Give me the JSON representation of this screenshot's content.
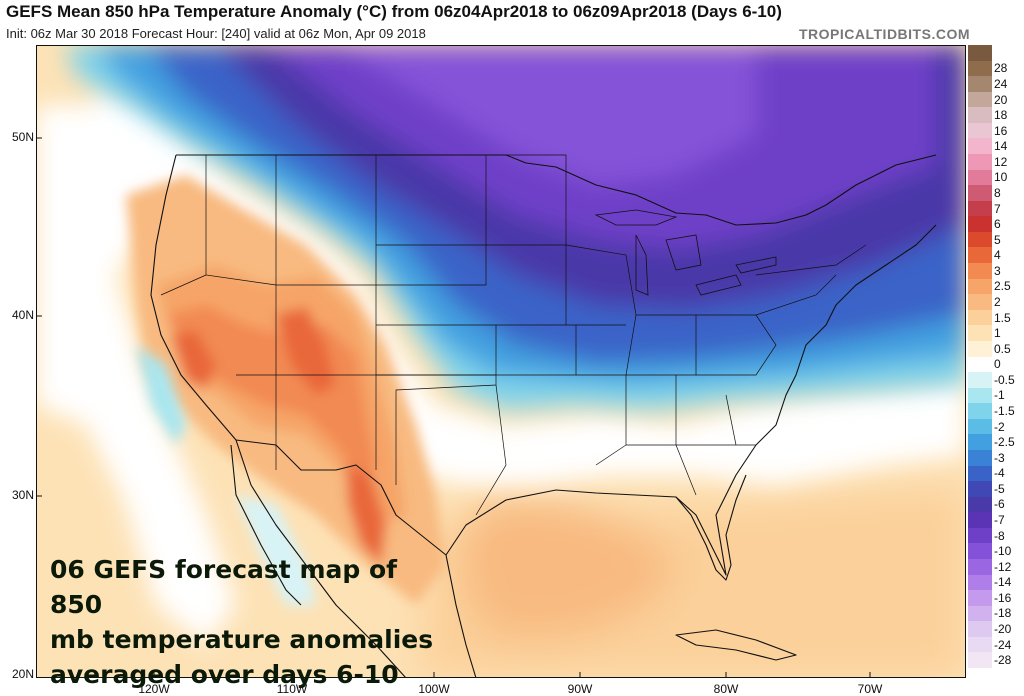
{
  "header": {
    "title": "GEFS Mean 850 hPa Temperature Anomaly (°C) from 06z04Apr2018 to 06z09Apr2018 (Days 6-10)",
    "subtitle": "Init: 06z Mar 30 2018   Forecast Hour: [240]   valid at 06z Mon, Apr 09 2018",
    "brand": "TROPICALTIDBITS.COM"
  },
  "axes": {
    "lat_labels": [
      "50N",
      "40N",
      "30N",
      "20N"
    ],
    "lon_labels": [
      "120W",
      "110W",
      "100W",
      "90W",
      "80W",
      "70W"
    ]
  },
  "annotation": {
    "line1": "06 GEFS forecast map of 850",
    "line2": "mb temperature anomalies",
    "line3": "averaged over days 6-10"
  },
  "legend": {
    "entries": [
      {
        "label": "28",
        "color": "#8e6c4c"
      },
      {
        "label": "24",
        "color": "#a58770"
      },
      {
        "label": "20",
        "color": "#c3a79a"
      },
      {
        "label": "18",
        "color": "#d9bcc0"
      },
      {
        "label": "16",
        "color": "#eac6d2"
      },
      {
        "label": "14",
        "color": "#f2b5cb"
      },
      {
        "label": "12",
        "color": "#ef98b6"
      },
      {
        "label": "10",
        "color": "#e27a9a"
      },
      {
        "label": "8",
        "color": "#cf5b72"
      },
      {
        "label": "7",
        "color": "#c43e4c"
      },
      {
        "label": "6",
        "color": "#c9322f"
      },
      {
        "label": "5",
        "color": "#dc4a2e"
      },
      {
        "label": "4",
        "color": "#e9683a"
      },
      {
        "label": "3",
        "color": "#f28a52"
      },
      {
        "label": "2.5",
        "color": "#f6a468"
      },
      {
        "label": "2",
        "color": "#f8ba80"
      },
      {
        "label": "1.5",
        "color": "#fbd09a"
      },
      {
        "label": "1",
        "color": "#fde2b6"
      },
      {
        "label": "0.5",
        "color": "#fff1d6"
      },
      {
        "label": "0",
        "color": "#ffffff"
      },
      {
        "label": "-0.5",
        "color": "#d8f3f6"
      },
      {
        "label": "-1",
        "color": "#a9e6f0"
      },
      {
        "label": "-1.5",
        "color": "#7fd3ea"
      },
      {
        "label": "-2",
        "color": "#5bbde6"
      },
      {
        "label": "-2.5",
        "color": "#43a0e0"
      },
      {
        "label": "-3",
        "color": "#3a82d6"
      },
      {
        "label": "-4",
        "color": "#3a63c8"
      },
      {
        "label": "-5",
        "color": "#4048b6"
      },
      {
        "label": "-6",
        "color": "#4a39a8"
      },
      {
        "label": "-7",
        "color": "#5a34b4"
      },
      {
        "label": "-8",
        "color": "#6e40c8"
      },
      {
        "label": "-10",
        "color": "#8452d8"
      },
      {
        "label": "-12",
        "color": "#9a66e2"
      },
      {
        "label": "-14",
        "color": "#b07ee8"
      },
      {
        "label": "-16",
        "color": "#c49aec"
      },
      {
        "label": "-18",
        "color": "#d2b2ee"
      },
      {
        "label": "-20",
        "color": "#decaf0"
      },
      {
        "label": "-24",
        "color": "#e8daf2"
      },
      {
        "label": "-28",
        "color": "#f2e6f4"
      }
    ]
  }
}
